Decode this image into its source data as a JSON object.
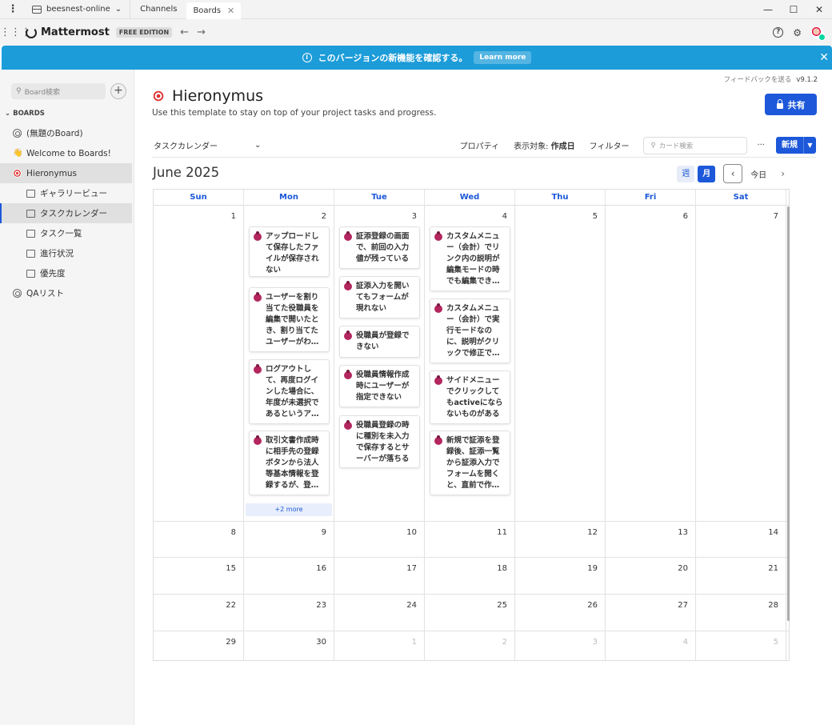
{
  "titlebar": {
    "server_name": "beesnest-online",
    "tabs": [
      {
        "label": "Channels"
      },
      {
        "label": "Boards"
      }
    ],
    "minimize": "—",
    "maximize": "☐",
    "close": "✕"
  },
  "header": {
    "app_name": "Mattermost",
    "edition": "FREE EDITION"
  },
  "announcement": {
    "text": "このバージョンの新機能を確認する。",
    "button": "Learn more"
  },
  "sidebar": {
    "search_placeholder": "Board検索",
    "heading": "BOARDS",
    "boards": [
      {
        "label": "(無題のBoard)"
      },
      {
        "label": "Welcome to Boards!"
      },
      {
        "label": "Hieronymus"
      }
    ],
    "views": [
      {
        "label": "ギャラリービュー"
      },
      {
        "label": "タスクカレンダー"
      },
      {
        "label": "タスク一覧"
      },
      {
        "label": "進行状況"
      },
      {
        "label": "優先度"
      }
    ],
    "other_board": "QAリスト"
  },
  "main": {
    "feedback": "フィードバックを送る",
    "version": "v9.1.2",
    "board_title": "Hieronymus",
    "board_description": "Use this template to stay on top of your project tasks and progress.",
    "share_button": "共有",
    "view_name": "タスクカレンダー",
    "properties": "プロパティ",
    "display_label": "表示対象:",
    "display_value": "作成日",
    "filter": "フィルター",
    "card_search_placeholder": "カード検索",
    "more_menu": "···",
    "new_button": "新規"
  },
  "calendar": {
    "title": "June 2025",
    "week_btn": "週",
    "month_btn": "月",
    "today_btn": "今日",
    "weekdays": [
      "Sun",
      "Mon",
      "Tue",
      "Wed",
      "Thu",
      "Fri",
      "Sat"
    ],
    "weeks": [
      [
        "1",
        "2",
        "3",
        "4",
        "5",
        "6",
        "7"
      ],
      [
        "8",
        "9",
        "10",
        "11",
        "12",
        "13",
        "14"
      ],
      [
        "15",
        "16",
        "17",
        "18",
        "19",
        "20",
        "21"
      ],
      [
        "22",
        "23",
        "24",
        "25",
        "26",
        "27",
        "28"
      ],
      [
        "29",
        "30",
        "1",
        "2",
        "3",
        "4",
        "5"
      ]
    ],
    "cards": {
      "mon": [
        "アップロードして保存したファイルが保存されない",
        "ユーザーを割り当てた役職員を編集で開いたとき、割り当てたユーザーがわ…",
        "ログアウトして、再度ログインした場合に、年度が未選択であるというア…",
        "取引文書作成時に相手先の登録ボタンから法人等基本情報を登録するが、登…"
      ],
      "mon_more": "+2 more",
      "tue": [
        "証添登録の画面で、前回の入力値が残っている",
        "証添入力を開いてもフォームが現れない",
        "役職員が登録できない",
        "役職員情報作成時にユーザーが指定できない",
        "役職員登録の時に種別を未入力で保存するとサーバーが落ちる"
      ],
      "wed": [
        "カスタムメニュー（会計）でリンク内の説明が編集モードの時でも編集でき…",
        "カスタムメニュー（会計）で実行モードなのに、説明がクリックで修正で…",
        "サイドメニューでクリックしてもactiveにならないものがある",
        "新規で証添を登録後、証添一覧から証添入力でフォームを開くと、直前で作…"
      ]
    }
  }
}
